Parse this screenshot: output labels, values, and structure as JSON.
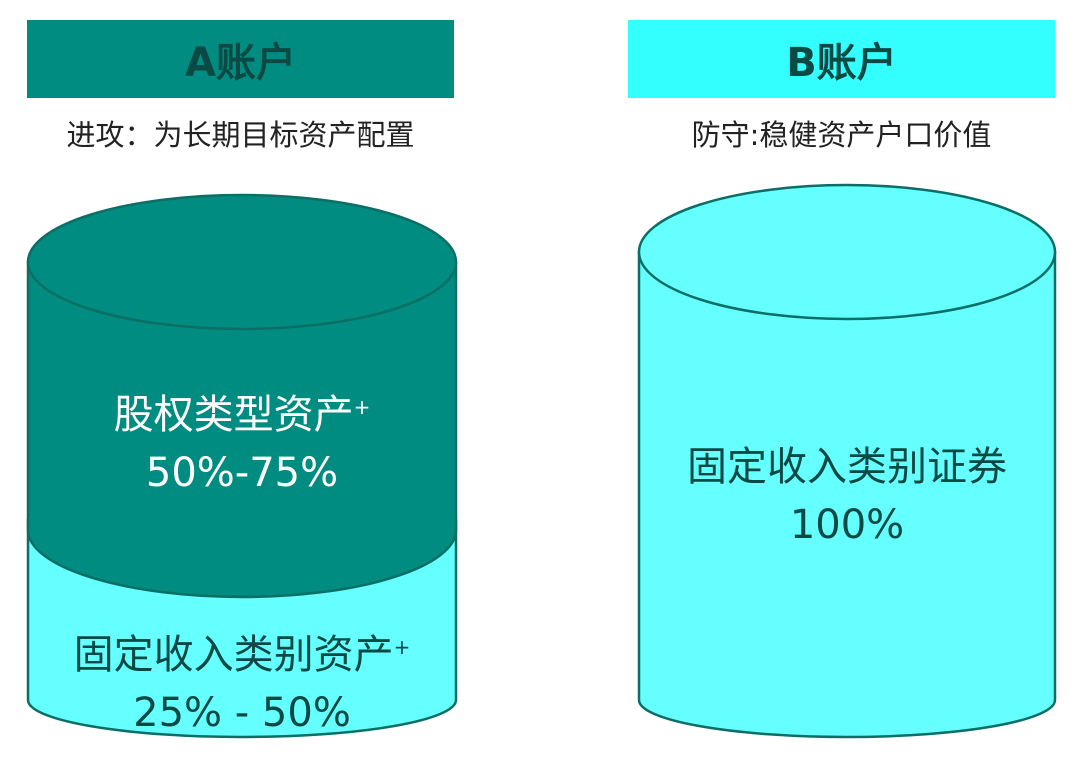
{
  "colors": {
    "dark_teal": "#008C80",
    "light_cyan": "#66FFFF",
    "header_b": "#33FFFF",
    "outline": "#0b6f66"
  },
  "account_a": {
    "title": "A账户",
    "subtitle": "进攻：为长期目标资产配置",
    "segments": [
      {
        "label": "股权类型资产",
        "mark": "+",
        "range": "50%-75%"
      },
      {
        "label": "固定收入类别资产",
        "mark": "+",
        "range": "25% - 50%"
      }
    ]
  },
  "account_b": {
    "title": "B账户",
    "subtitle": "防守:稳健资产户口价值",
    "segments": [
      {
        "label": "固定收入类别证券",
        "range": "100%"
      }
    ]
  }
}
